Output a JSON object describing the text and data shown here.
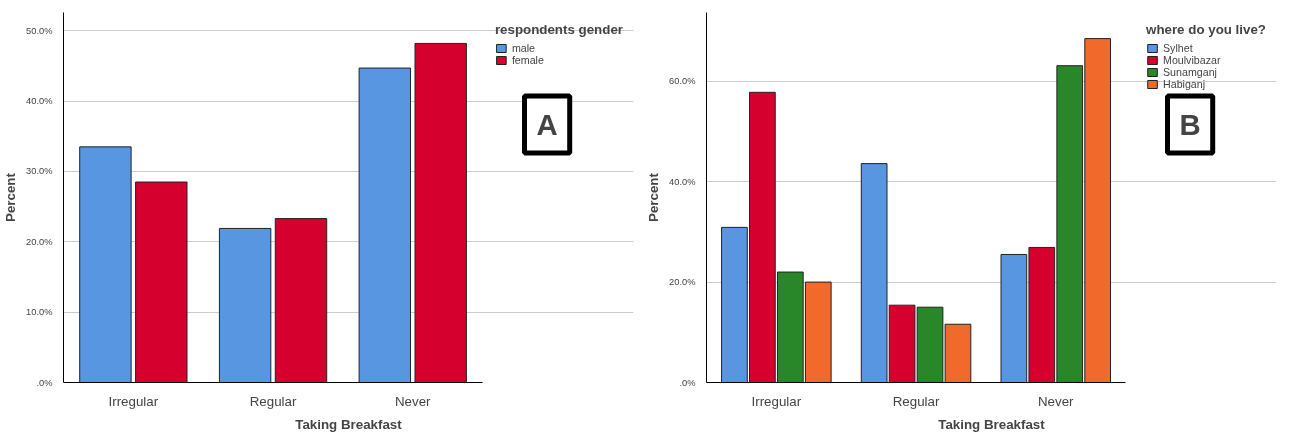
{
  "chart_data": [
    {
      "type": "bar",
      "xlabel": "Taking Breakfast",
      "ylabel": "Percent",
      "legend_title": "respondents gender",
      "categories": [
        "Irregular",
        "Regular",
        "Never"
      ],
      "series": [
        {
          "name": "male",
          "color": "#5896e2",
          "values": [
            33.5,
            21.9,
            44.7
          ]
        },
        {
          "name": "female",
          "color": "#d6002e",
          "values": [
            28.5,
            23.3,
            48.2
          ]
        }
      ],
      "ylim": [
        0,
        52.6
      ],
      "yticks": [
        {
          "value": 0,
          "label": ".0%"
        },
        {
          "value": 10,
          "label": "10.0%"
        },
        {
          "value": 20,
          "label": "20.0%"
        },
        {
          "value": 30,
          "label": "30.0%"
        },
        {
          "value": 40,
          "label": "40.0%"
        },
        {
          "value": 50,
          "label": "50.0%"
        }
      ],
      "grid": "y",
      "legend": "top right",
      "annotations": [
        "A"
      ]
    },
    {
      "type": "bar",
      "xlabel": "Taking Breakfast",
      "ylabel": "Percent",
      "legend_title": "where do you live?",
      "categories": [
        "Irregular",
        "Regular",
        "Never"
      ],
      "series": [
        {
          "name": "Sylhet",
          "color": "#5896e2",
          "values": [
            30.9,
            43.6,
            25.5
          ]
        },
        {
          "name": "Moulvibazar",
          "color": "#d6002e",
          "values": [
            57.8,
            15.4,
            26.9
          ]
        },
        {
          "name": "Sunamganj",
          "color": "#2a8729",
          "values": [
            22.0,
            15.0,
            63.1
          ]
        },
        {
          "name": "Habiganj",
          "color": "#f1692b",
          "values": [
            20.0,
            11.6,
            68.5
          ]
        }
      ],
      "ylim": [
        0,
        73.7
      ],
      "yticks": [
        {
          "value": 0,
          "label": ".0%"
        },
        {
          "value": 20,
          "label": "20.0%"
        },
        {
          "value": 40,
          "label": "40.0%"
        },
        {
          "value": 60,
          "label": "60.0%"
        }
      ],
      "grid": "y",
      "legend": "top right",
      "annotations": [
        "B"
      ]
    }
  ]
}
